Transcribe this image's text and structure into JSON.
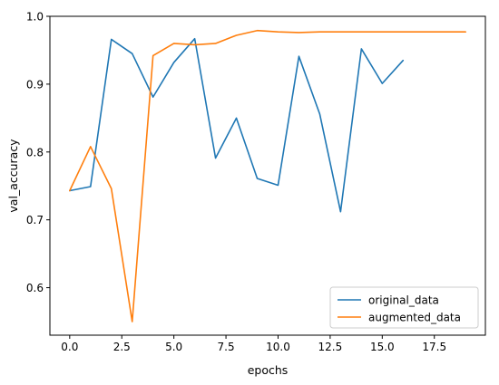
{
  "chart_data": {
    "type": "line",
    "title": "",
    "xlabel": "epochs",
    "ylabel": "val_accuracy",
    "xlim": [
      -0.95,
      19.95
    ],
    "ylim": [
      0.53,
      1.0
    ],
    "xticks": [
      0.0,
      2.5,
      5.0,
      7.5,
      10.0,
      12.5,
      15.0,
      17.5
    ],
    "xtick_labels": [
      "0.0",
      "2.5",
      "5.0",
      "7.5",
      "10.0",
      "12.5",
      "15.0",
      "17.5"
    ],
    "yticks": [
      0.6,
      0.7,
      0.8,
      0.9,
      1.0
    ],
    "ytick_labels": [
      "0.6",
      "0.7",
      "0.8",
      "0.9",
      "1.0"
    ],
    "grid": false,
    "legend_position": "lower-right",
    "series": [
      {
        "name": "original_data",
        "color": "#1f77b4",
        "x": [
          0,
          1,
          2,
          3,
          4,
          5,
          6,
          7,
          8,
          9,
          10,
          11,
          12,
          13,
          14,
          15,
          16
        ],
        "y": [
          0.743,
          0.749,
          0.966,
          0.945,
          0.881,
          0.932,
          0.967,
          0.791,
          0.85,
          0.761,
          0.751,
          0.941,
          0.856,
          0.712,
          0.952,
          0.901,
          0.935
        ]
      },
      {
        "name": "augmented_data",
        "color": "#ff7f0e",
        "x": [
          0,
          1,
          2,
          3,
          4,
          5,
          6,
          7,
          8,
          9,
          10,
          11,
          12,
          13,
          14,
          15,
          16,
          17,
          18,
          19
        ],
        "y": [
          0.743,
          0.808,
          0.746,
          0.55,
          0.942,
          0.96,
          0.958,
          0.96,
          0.972,
          0.979,
          0.977,
          0.976,
          0.977,
          0.977,
          0.977,
          0.977,
          0.977,
          0.977,
          0.977,
          0.977
        ]
      }
    ]
  }
}
